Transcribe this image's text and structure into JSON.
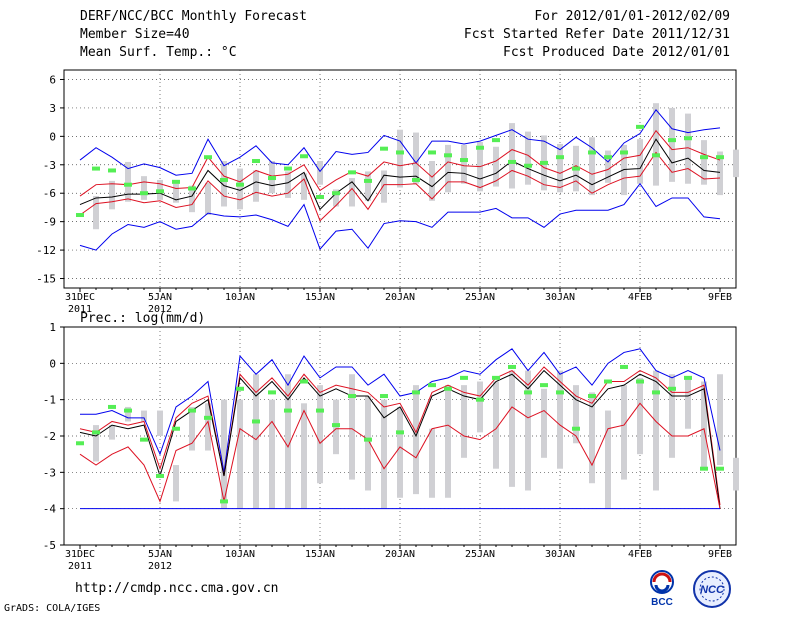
{
  "header": {
    "title": "DERF/NCC/BCC Monthly Forecast",
    "member_size": "Member Size=40",
    "variable1": "Mean Surf. Temp.: °C",
    "period": "For 2012/01/01-2012/02/09",
    "started": "Fcst Started Refer Date 2011/12/31",
    "produced": "Fcst Produced Date 2012/01/01"
  },
  "footer": {
    "url": "http://cmdp.ncc.cma.gov.cn",
    "grads": "GrADS: COLA/IGES",
    "logo_bcc": "BCC",
    "logo_ncc": "NCC"
  },
  "colors": {
    "blue": "#0000ee",
    "red": "#dd1122",
    "black": "#000000",
    "green": "#55ee55",
    "bar": "#d0d0d4",
    "grid": "#444444"
  },
  "chart_data": [
    {
      "type": "line",
      "title": "Mean Surf. Temp.: °C",
      "x_ticks": [
        {
          "day": 0,
          "label": "31DEC",
          "label2": "2011"
        },
        {
          "day": 5,
          "label": "5JAN",
          "label2": "2012"
        },
        {
          "day": 10,
          "label": "10JAN"
        },
        {
          "day": 15,
          "label": "15JAN"
        },
        {
          "day": 20,
          "label": "20JAN"
        },
        {
          "day": 25,
          "label": "25JAN"
        },
        {
          "day": 30,
          "label": "30JAN"
        },
        {
          "day": 35,
          "label": "4FEB"
        },
        {
          "day": 40,
          "label": "9FEB"
        }
      ],
      "ylim": [
        -16,
        7
      ],
      "y_ticks": [
        6,
        3,
        0,
        -3,
        -6,
        -9,
        -12,
        -15
      ],
      "days_start": 1,
      "series": [
        {
          "name": "max",
          "color": "blue",
          "values": [
            -2.5,
            -1.2,
            -2.2,
            -3.4,
            -2.9,
            -3.3,
            -4.1,
            -3.9,
            -0.3,
            -3.1,
            -2.2,
            -1.0,
            -2.8,
            -3.0,
            -1.2,
            -3.7,
            -1.6,
            -1.9,
            -1.7,
            0.1,
            -0.5,
            -2.8,
            -0.5,
            -0.5,
            -0.8,
            -0.5,
            0.1,
            0.7,
            -0.3,
            -0.5,
            -1.4,
            -0.1,
            -1.2,
            -2.7,
            -0.7,
            0.3,
            2.8,
            0.8,
            0.4,
            0.7,
            0.9
          ]
        },
        {
          "name": "upper",
          "color": "red",
          "values": [
            -6.3,
            -5.1,
            -5.0,
            -5.1,
            -4.8,
            -5.0,
            -5.5,
            -5.4,
            -2.2,
            -4.2,
            -4.8,
            -3.6,
            -4.2,
            -4.0,
            -3.0,
            -5.7,
            -4.6,
            -3.7,
            -4.2,
            -2.7,
            -3.1,
            -2.8,
            -4.3,
            -2.7,
            -3.1,
            -3.2,
            -2.6,
            -1.4,
            -2.0,
            -3.3,
            -3.9,
            -3.1,
            -4.0,
            -3.5,
            -2.3,
            -2.0,
            0.6,
            -1.4,
            -1.2,
            -1.9,
            -2.5
          ]
        },
        {
          "name": "mean",
          "color": "black",
          "values": [
            -7.2,
            -6.5,
            -6.4,
            -6.1,
            -6.1,
            -6.0,
            -6.7,
            -6.3,
            -3.6,
            -5.2,
            -5.7,
            -4.8,
            -5.2,
            -4.9,
            -3.8,
            -7.7,
            -6.0,
            -4.8,
            -6.8,
            -4.1,
            -4.3,
            -4.2,
            -5.3,
            -3.8,
            -3.9,
            -4.5,
            -3.9,
            -2.6,
            -3.4,
            -4.1,
            -4.7,
            -4.1,
            -5.1,
            -4.3,
            -3.5,
            -3.4,
            -0.3,
            -2.8,
            -2.3,
            -3.6,
            -3.8
          ]
        },
        {
          "name": "lower",
          "color": "red",
          "values": [
            -8.3,
            -7.1,
            -6.9,
            -6.6,
            -7.0,
            -6.8,
            -7.5,
            -7.2,
            -4.7,
            -6.3,
            -6.7,
            -5.9,
            -6.3,
            -6.0,
            -4.5,
            -8.9,
            -7.3,
            -5.5,
            -7.7,
            -5.1,
            -5.1,
            -5.0,
            -6.6,
            -4.8,
            -4.8,
            -5.4,
            -4.7,
            -3.6,
            -4.2,
            -5.1,
            -5.4,
            -4.7,
            -6.0,
            -5.1,
            -4.4,
            -4.2,
            -1.7,
            -3.8,
            -3.4,
            -4.5,
            -4.4
          ]
        },
        {
          "name": "min",
          "color": "blue",
          "values": [
            -11.5,
            -12.0,
            -10.3,
            -9.3,
            -9.6,
            -9.0,
            -9.8,
            -9.5,
            -8.1,
            -8.4,
            -8.5,
            -8.3,
            -8.8,
            -9.5,
            -7.2,
            -11.9,
            -10.0,
            -9.8,
            -11.8,
            -9.2,
            -8.9,
            -9.0,
            -9.6,
            -8.0,
            -8.0,
            -8.0,
            -7.6,
            -8.6,
            -8.6,
            -9.6,
            -8.2,
            -7.8,
            -7.8,
            -7.8,
            -7.2,
            -5.0,
            -7.4,
            -6.5,
            -6.5,
            -8.5,
            -8.7
          ]
        }
      ],
      "ranges": [
        [
          -9.8,
          -6.3
        ],
        [
          -7.7,
          -4.7
        ],
        [
          -6.9,
          -2.7
        ],
        [
          -6.7,
          -4.2
        ],
        [
          -6.7,
          -4.6
        ],
        [
          -7.0,
          -5.0
        ],
        [
          -8.0,
          -5.2
        ],
        [
          -8.3,
          -4.9
        ],
        [
          -7.4,
          -2.6
        ],
        [
          -7.7,
          -3.4
        ],
        [
          -6.9,
          -3.6
        ],
        [
          -6.0,
          -2.6
        ],
        [
          -6.5,
          -3.7
        ],
        [
          -6.7,
          -3.9
        ],
        [
          -5.1,
          -2.6
        ],
        [
          -7.4,
          -5.6
        ],
        [
          -7.4,
          -4.4
        ],
        [
          -6.8,
          -3.7
        ],
        [
          -7.0,
          -3.6
        ],
        [
          -5.4,
          0.7
        ],
        [
          -5.0,
          0.4
        ],
        [
          -6.8,
          -2.6
        ],
        [
          -5.9,
          -0.9
        ],
        [
          -5.0,
          -0.9
        ],
        [
          -5.8,
          -0.6
        ],
        [
          -5.3,
          -1.1
        ],
        [
          -5.5,
          1.4
        ],
        [
          -5.1,
          0.5
        ],
        [
          -5.7,
          0.1
        ],
        [
          -5.9,
          -0.8
        ],
        [
          -5.8,
          -1.0
        ],
        [
          -6.2,
          -0.1
        ],
        [
          -4.9,
          -1.5
        ],
        [
          -6.2,
          -0.9
        ],
        [
          -5.0,
          -0.3
        ],
        [
          -5.2,
          3.5
        ],
        [
          -4.8,
          3.0
        ],
        [
          -5.0,
          2.4
        ],
        [
          -5.1,
          -0.4
        ],
        [
          -6.2,
          -1.6
        ],
        [
          -4.3,
          -1.4
        ]
      ],
      "observed": [
        -8.3,
        -3.4,
        -3.6,
        -5.1,
        -6.0,
        -5.8,
        -4.8,
        -5.5,
        -2.2,
        -4.6,
        -5.1,
        -2.6,
        -4.4,
        -3.4,
        -2.1,
        -6.4,
        -6.0,
        -3.8,
        -4.7,
        -1.3,
        -1.7,
        -4.6,
        -1.7,
        -2.0,
        -2.5,
        -1.2,
        -0.4,
        -2.7,
        -3.1,
        -2.8,
        -2.2,
        -3.4,
        -1.7,
        -2.2,
        -1.7,
        1.0,
        -2.0,
        -0.4,
        -0.2,
        -2.2,
        -2.2
      ]
    },
    {
      "type": "line",
      "title": "Prec.: log(mm/d)",
      "x_ticks": [
        {
          "day": 0,
          "label": "31DEC",
          "label2": "2011"
        },
        {
          "day": 5,
          "label": "5JAN",
          "label2": "2012"
        },
        {
          "day": 10,
          "label": "10JAN"
        },
        {
          "day": 15,
          "label": "15JAN"
        },
        {
          "day": 20,
          "label": "20JAN"
        },
        {
          "day": 25,
          "label": "25JAN"
        },
        {
          "day": 30,
          "label": "30JAN"
        },
        {
          "day": 35,
          "label": "4FEB"
        },
        {
          "day": 40,
          "label": "9FEB"
        }
      ],
      "ylim": [
        -5,
        1
      ],
      "y_ticks": [
        1,
        0,
        -1,
        -2,
        -3,
        -4,
        -5
      ],
      "days_start": 1,
      "series": [
        {
          "name": "max",
          "color": "blue",
          "values": [
            -1.4,
            -1.4,
            -1.3,
            -1.5,
            -1.5,
            -2.5,
            -1.2,
            -0.9,
            -0.5,
            -3.0,
            0.2,
            -0.3,
            0.1,
            -0.6,
            0.2,
            -0.4,
            -0.1,
            -0.1,
            -0.6,
            -0.3,
            -0.9,
            -0.8,
            -0.5,
            -0.4,
            -0.2,
            -0.3,
            0.1,
            0.4,
            -0.2,
            0.3,
            -0.3,
            -0.1,
            -0.6,
            0.0,
            0.3,
            0.4,
            -0.2,
            -0.4,
            -0.2,
            -0.4,
            -2.4
          ]
        },
        {
          "name": "upper",
          "color": "red",
          "values": [
            -1.8,
            -1.9,
            -1.6,
            -1.7,
            -1.6,
            -2.9,
            -1.5,
            -1.1,
            -0.9,
            -3.1,
            -0.3,
            -0.8,
            -0.4,
            -0.9,
            -0.3,
            -0.8,
            -0.6,
            -0.7,
            -0.8,
            -1.2,
            -1.1,
            -1.9,
            -0.8,
            -0.6,
            -0.8,
            -0.9,
            -0.4,
            -0.2,
            -0.6,
            -0.1,
            -0.5,
            -0.9,
            -1.1,
            -0.5,
            -0.5,
            -0.2,
            -0.4,
            -0.8,
            -0.8,
            -0.6,
            -3.9
          ]
        },
        {
          "name": "mean",
          "color": "black",
          "values": [
            -1.9,
            -2.0,
            -1.7,
            -1.8,
            -1.7,
            -3.1,
            -1.6,
            -1.3,
            -1.0,
            -3.1,
            -0.4,
            -0.9,
            -0.5,
            -1.0,
            -0.4,
            -0.9,
            -0.7,
            -0.9,
            -0.9,
            -1.5,
            -1.2,
            -2.0,
            -0.9,
            -0.7,
            -0.9,
            -1.0,
            -0.5,
            -0.3,
            -0.7,
            -0.2,
            -0.6,
            -1.0,
            -1.2,
            -0.7,
            -0.6,
            -0.3,
            -0.5,
            -0.9,
            -0.9,
            -0.7,
            -4.0
          ]
        },
        {
          "name": "lower",
          "color": "red",
          "values": [
            -2.5,
            -2.8,
            -2.5,
            -2.3,
            -2.8,
            -3.8,
            -2.4,
            -2.2,
            -1.6,
            -3.8,
            -1.8,
            -2.1,
            -1.6,
            -2.3,
            -1.3,
            -2.2,
            -1.8,
            -1.8,
            -2.1,
            -2.9,
            -2.3,
            -2.6,
            -1.8,
            -1.7,
            -2.0,
            -2.1,
            -1.8,
            -1.2,
            -1.5,
            -1.3,
            -1.7,
            -2.0,
            -2.8,
            -1.8,
            -1.7,
            -1.1,
            -1.6,
            -2.0,
            -2.0,
            -1.8,
            -4.0
          ]
        },
        {
          "name": "min",
          "color": "blue",
          "values": [
            -4.0,
            -4.0,
            -4.0,
            -4.0,
            -4.0,
            -4.0,
            -4.0,
            -4.0,
            -4.0,
            -4.0,
            -4.0,
            -4.0,
            -4.0,
            -4.0,
            -4.0,
            -4.0,
            -4.0,
            -4.0,
            -4.0,
            -4.0,
            -4.0,
            -4.0,
            -4.0,
            -4.0,
            -4.0,
            -4.0,
            -4.0,
            -4.0,
            -4.0,
            -4.0,
            -4.0,
            -4.0,
            -4.0,
            -4.0,
            -4.0,
            -4.0,
            -4.0,
            -4.0,
            -4.0,
            -4.0,
            -4.0
          ]
        }
      ],
      "ranges": [
        [
          -2.7,
          -1.7
        ],
        [
          -2.1,
          -1.7
        ],
        [
          -1.6,
          -1.2
        ],
        [
          -1.6,
          -1.3
        ],
        [
          -2.0,
          -1.3
        ],
        [
          -3.8,
          -2.8
        ],
        [
          -2.4,
          -1.2
        ],
        [
          -2.4,
          -1.1
        ],
        [
          -4.0,
          -1.0
        ],
        [
          -4.0,
          -1.0
        ],
        [
          -4.0,
          -0.3
        ],
        [
          -4.0,
          -1.0
        ],
        [
          -4.0,
          -0.3
        ],
        [
          -4.0,
          -1.1
        ],
        [
          -3.3,
          -0.6
        ],
        [
          -2.5,
          -1.0
        ],
        [
          -3.2,
          -0.3
        ],
        [
          -3.5,
          -0.9
        ],
        [
          -4.0,
          -1.0
        ],
        [
          -3.7,
          -1.2
        ],
        [
          -3.6,
          -0.6
        ],
        [
          -3.7,
          -1.8
        ],
        [
          -3.7,
          -0.6
        ],
        [
          -2.6,
          -0.6
        ],
        [
          -1.9,
          -0.5
        ],
        [
          -2.9,
          -0.5
        ],
        [
          -3.4,
          -0.2
        ],
        [
          -3.5,
          -0.2
        ],
        [
          -2.6,
          -0.7
        ],
        [
          -2.9,
          -0.2
        ],
        [
          -2.2,
          -0.6
        ],
        [
          -3.3,
          -0.8
        ],
        [
          -4.0,
          -1.3
        ],
        [
          -3.2,
          -0.6
        ],
        [
          -2.5,
          -0.4
        ],
        [
          -3.5,
          -0.2
        ],
        [
          -2.6,
          -0.3
        ],
        [
          -1.8,
          -0.4
        ],
        [
          -2.9,
          -0.5
        ],
        [
          -2.8,
          -0.3
        ],
        [
          -3.5,
          -2.6
        ]
      ],
      "observed": [
        -2.2,
        -1.9,
        -1.2,
        -1.3,
        -2.1,
        -3.1,
        -1.8,
        -1.3,
        -1.5,
        -3.8,
        -0.7,
        -1.6,
        -0.8,
        -1.3,
        -0.5,
        -1.3,
        -1.7,
        -0.9,
        -2.1,
        -0.9,
        -1.9,
        -0.8,
        -0.6,
        -0.7,
        -0.4,
        -1.0,
        -0.4,
        -0.1,
        -0.8,
        -0.6,
        -0.8,
        -1.8,
        -0.9,
        -0.5,
        -0.1,
        -0.5,
        -0.8,
        -0.7,
        -0.4,
        -2.9,
        -2.9
      ]
    }
  ]
}
